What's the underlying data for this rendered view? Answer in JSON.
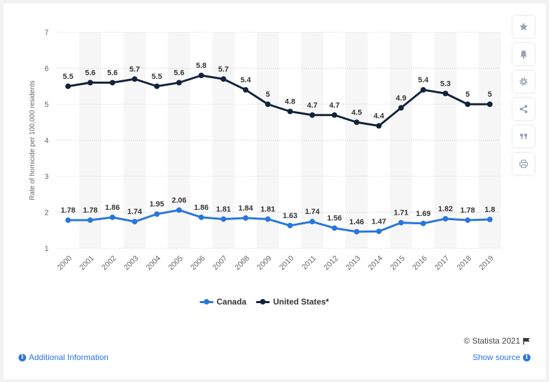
{
  "chart_data": {
    "type": "line",
    "categories": [
      "2000",
      "2001",
      "2002",
      "2003",
      "2004",
      "2005",
      "2006",
      "2007",
      "2008",
      "2009",
      "2010",
      "2011",
      "2012",
      "2013",
      "2014",
      "2015",
      "2016",
      "2017",
      "2018",
      "2019"
    ],
    "series": [
      {
        "name": "Canada",
        "color": "#2876dd",
        "values": [
          1.78,
          1.78,
          1.86,
          1.74,
          1.95,
          2.06,
          1.86,
          1.81,
          1.84,
          1.81,
          1.63,
          1.74,
          1.56,
          1.46,
          1.47,
          1.71,
          1.69,
          1.82,
          1.78,
          1.8
        ]
      },
      {
        "name": "United States*",
        "color": "#12223a",
        "values": [
          5.5,
          5.6,
          5.6,
          5.7,
          5.5,
          5.6,
          5.8,
          5.7,
          5.4,
          5,
          4.8,
          4.7,
          4.7,
          4.5,
          4.4,
          4.9,
          5.4,
          5.3,
          5,
          5
        ]
      }
    ],
    "ylabel": "Rate of homicide per 100,000 residents",
    "xlabel": "",
    "ylim": [
      1,
      7
    ],
    "yticks": [
      1,
      2,
      3,
      4,
      5,
      6,
      7
    ],
    "grid": true,
    "legend": "bottom-center"
  },
  "legend": {
    "items": [
      {
        "label": "Canada"
      },
      {
        "label": "United States*"
      }
    ]
  },
  "toolbar": {
    "icons": [
      "star-icon",
      "bell-icon",
      "gear-icon",
      "share-icon",
      "quote-icon",
      "print-icon"
    ]
  },
  "footer": {
    "copyright": "© Statista 2021",
    "additional_info": "Additional Information",
    "show_source": "Show source"
  }
}
